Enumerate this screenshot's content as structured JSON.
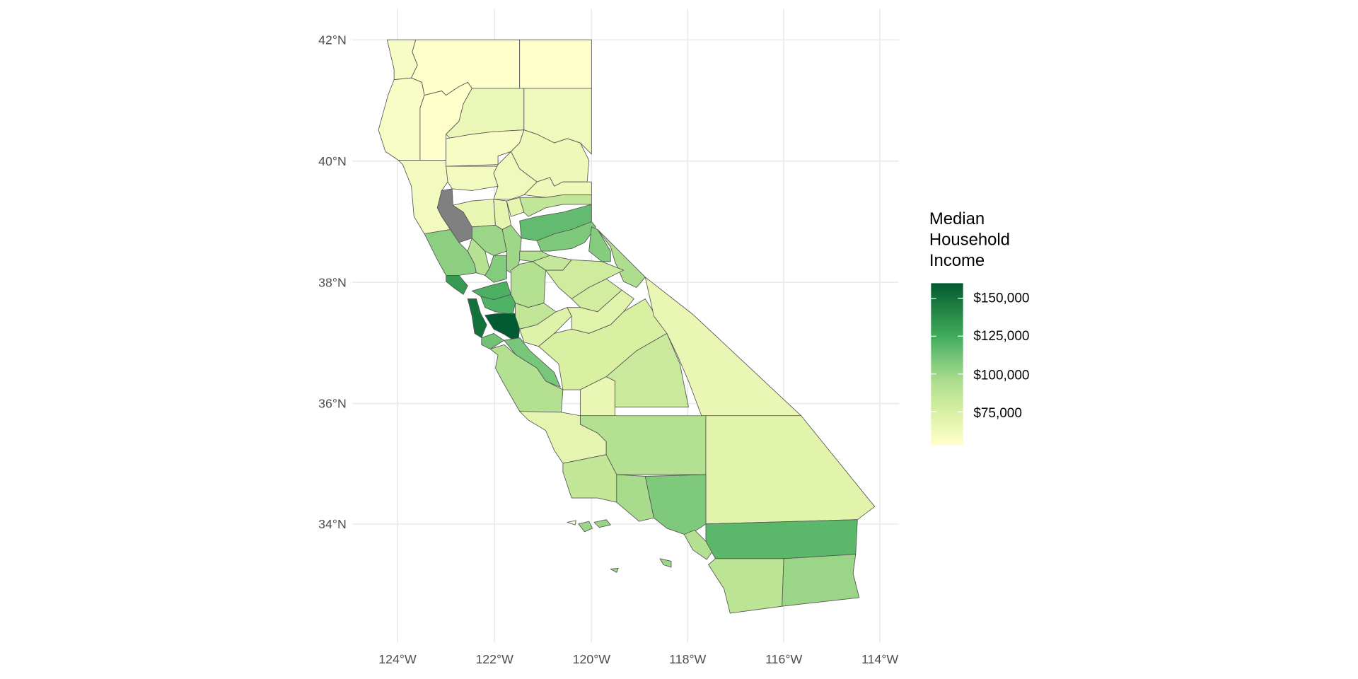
{
  "map": {
    "x_ticks": [
      "124°W",
      "122°W",
      "120°W",
      "118°W",
      "116°W",
      "114°W"
    ],
    "y_ticks": [
      "42°N",
      "40°N",
      "38°N",
      "36°N",
      "34°N"
    ],
    "na_color": "#808080",
    "region_values": [
      58000,
      52000,
      50000,
      57000,
      48000,
      65000,
      62000,
      60000,
      58000,
      63000,
      60000,
      62000,
      63000,
      null,
      66000,
      68000,
      68000,
      86000,
      116000,
      108000,
      104000,
      90000,
      100000,
      99000,
      92000,
      84000,
      106000,
      95000,
      132000,
      107000,
      122000,
      92000,
      80000,
      78000,
      121000,
      150000,
      160000,
      86000,
      72000,
      70000,
      75000,
      112000,
      110000,
      92000,
      66000,
      82000,
      66000,
      68000,
      92000,
      70000,
      85000,
      96000,
      108000,
      92000,
      118000,
      88000,
      100000,
      55000,
      100000,
      100000,
      100000,
      100000
    ]
  },
  "legend": {
    "title_lines": [
      "Median",
      "Household",
      "Income"
    ],
    "labels": [
      "$150,000",
      "$125,000",
      "$100,000",
      "$75,000"
    ],
    "range": [
      53000,
      160000
    ],
    "color_stops": [
      {
        "value": 53000,
        "color": "#ffffcc"
      },
      {
        "value": 75000,
        "color": "#d9f0a3"
      },
      {
        "value": 95000,
        "color": "#addd8e"
      },
      {
        "value": 110000,
        "color": "#78c679"
      },
      {
        "value": 125000,
        "color": "#41ab5d"
      },
      {
        "value": 142000,
        "color": "#238443"
      },
      {
        "value": 160000,
        "color": "#005a32"
      }
    ]
  }
}
